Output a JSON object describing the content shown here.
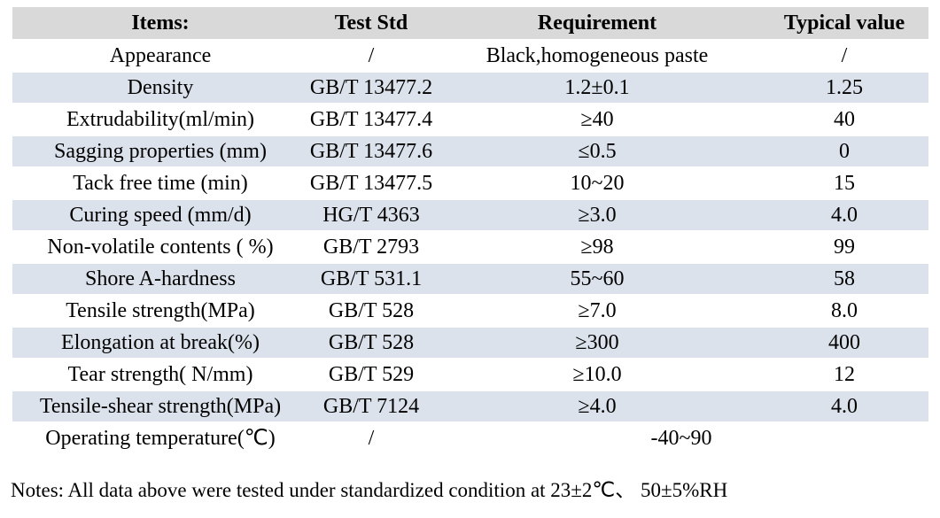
{
  "colors": {
    "page_bg": "#ffffff",
    "header_row_bg": "#d9d9d9",
    "shaded_row_bg": "#dbe2ec",
    "text": "#000000"
  },
  "table": {
    "headers": [
      "Items:",
      "Test Std",
      "Requirement",
      "Typical value"
    ],
    "rows": [
      {
        "item": "Appearance",
        "test_std": "/",
        "requirement": "Black,homogeneous paste",
        "typical_value": "/",
        "shaded": false
      },
      {
        "item": "Density",
        "test_std": "GB/T 13477.2",
        "requirement": "1.2±0.1",
        "typical_value": "1.25",
        "shaded": true
      },
      {
        "item": "Extrudability(ml/min)",
        "test_std": "GB/T 13477.4",
        "requirement": "≥40",
        "typical_value": "40",
        "shaded": false
      },
      {
        "item": "Sagging properties (mm)",
        "test_std": "GB/T 13477.6",
        "requirement": "≤0.5",
        "typical_value": "0",
        "shaded": true
      },
      {
        "item": "Tack free time (min)",
        "test_std": "GB/T 13477.5",
        "requirement": "10~20",
        "typical_value": "15",
        "shaded": false
      },
      {
        "item": "Curing speed (mm/d)",
        "test_std": "HG/T 4363",
        "requirement": "≥3.0",
        "typical_value": "4.0",
        "shaded": true
      },
      {
        "item": "Non-volatile contents ( %)",
        "test_std": "GB/T 2793",
        "requirement": "≥98",
        "typical_value": "99",
        "shaded": false
      },
      {
        "item": "Shore A-hardness",
        "test_std": "GB/T 531.1",
        "requirement": "55~60",
        "typical_value": "58",
        "shaded": true
      },
      {
        "item": "Tensile strength(MPa)",
        "test_std": "GB/T 528",
        "requirement": "≥7.0",
        "typical_value": "8.0",
        "shaded": false
      },
      {
        "item": "Elongation at break(%)",
        "test_std": "GB/T 528",
        "requirement": "≥300",
        "typical_value": "400",
        "shaded": true
      },
      {
        "item": "Tear strength( N/mm)",
        "test_std": "GB/T 529",
        "requirement": "≥10.0",
        "typical_value": "12",
        "shaded": false
      },
      {
        "item": "Tensile-shear strength(MPa)",
        "test_std": "GB/T 7124",
        "requirement": "≥4.0",
        "typical_value": "4.0",
        "shaded": true
      },
      {
        "item": "Operating temperature(℃)",
        "test_std": "/",
        "requirement_span": "-40~90",
        "shaded": false
      }
    ]
  },
  "notes": "Notes: All data above were tested under standardized condition at 23±2℃、 50±5%RH"
}
